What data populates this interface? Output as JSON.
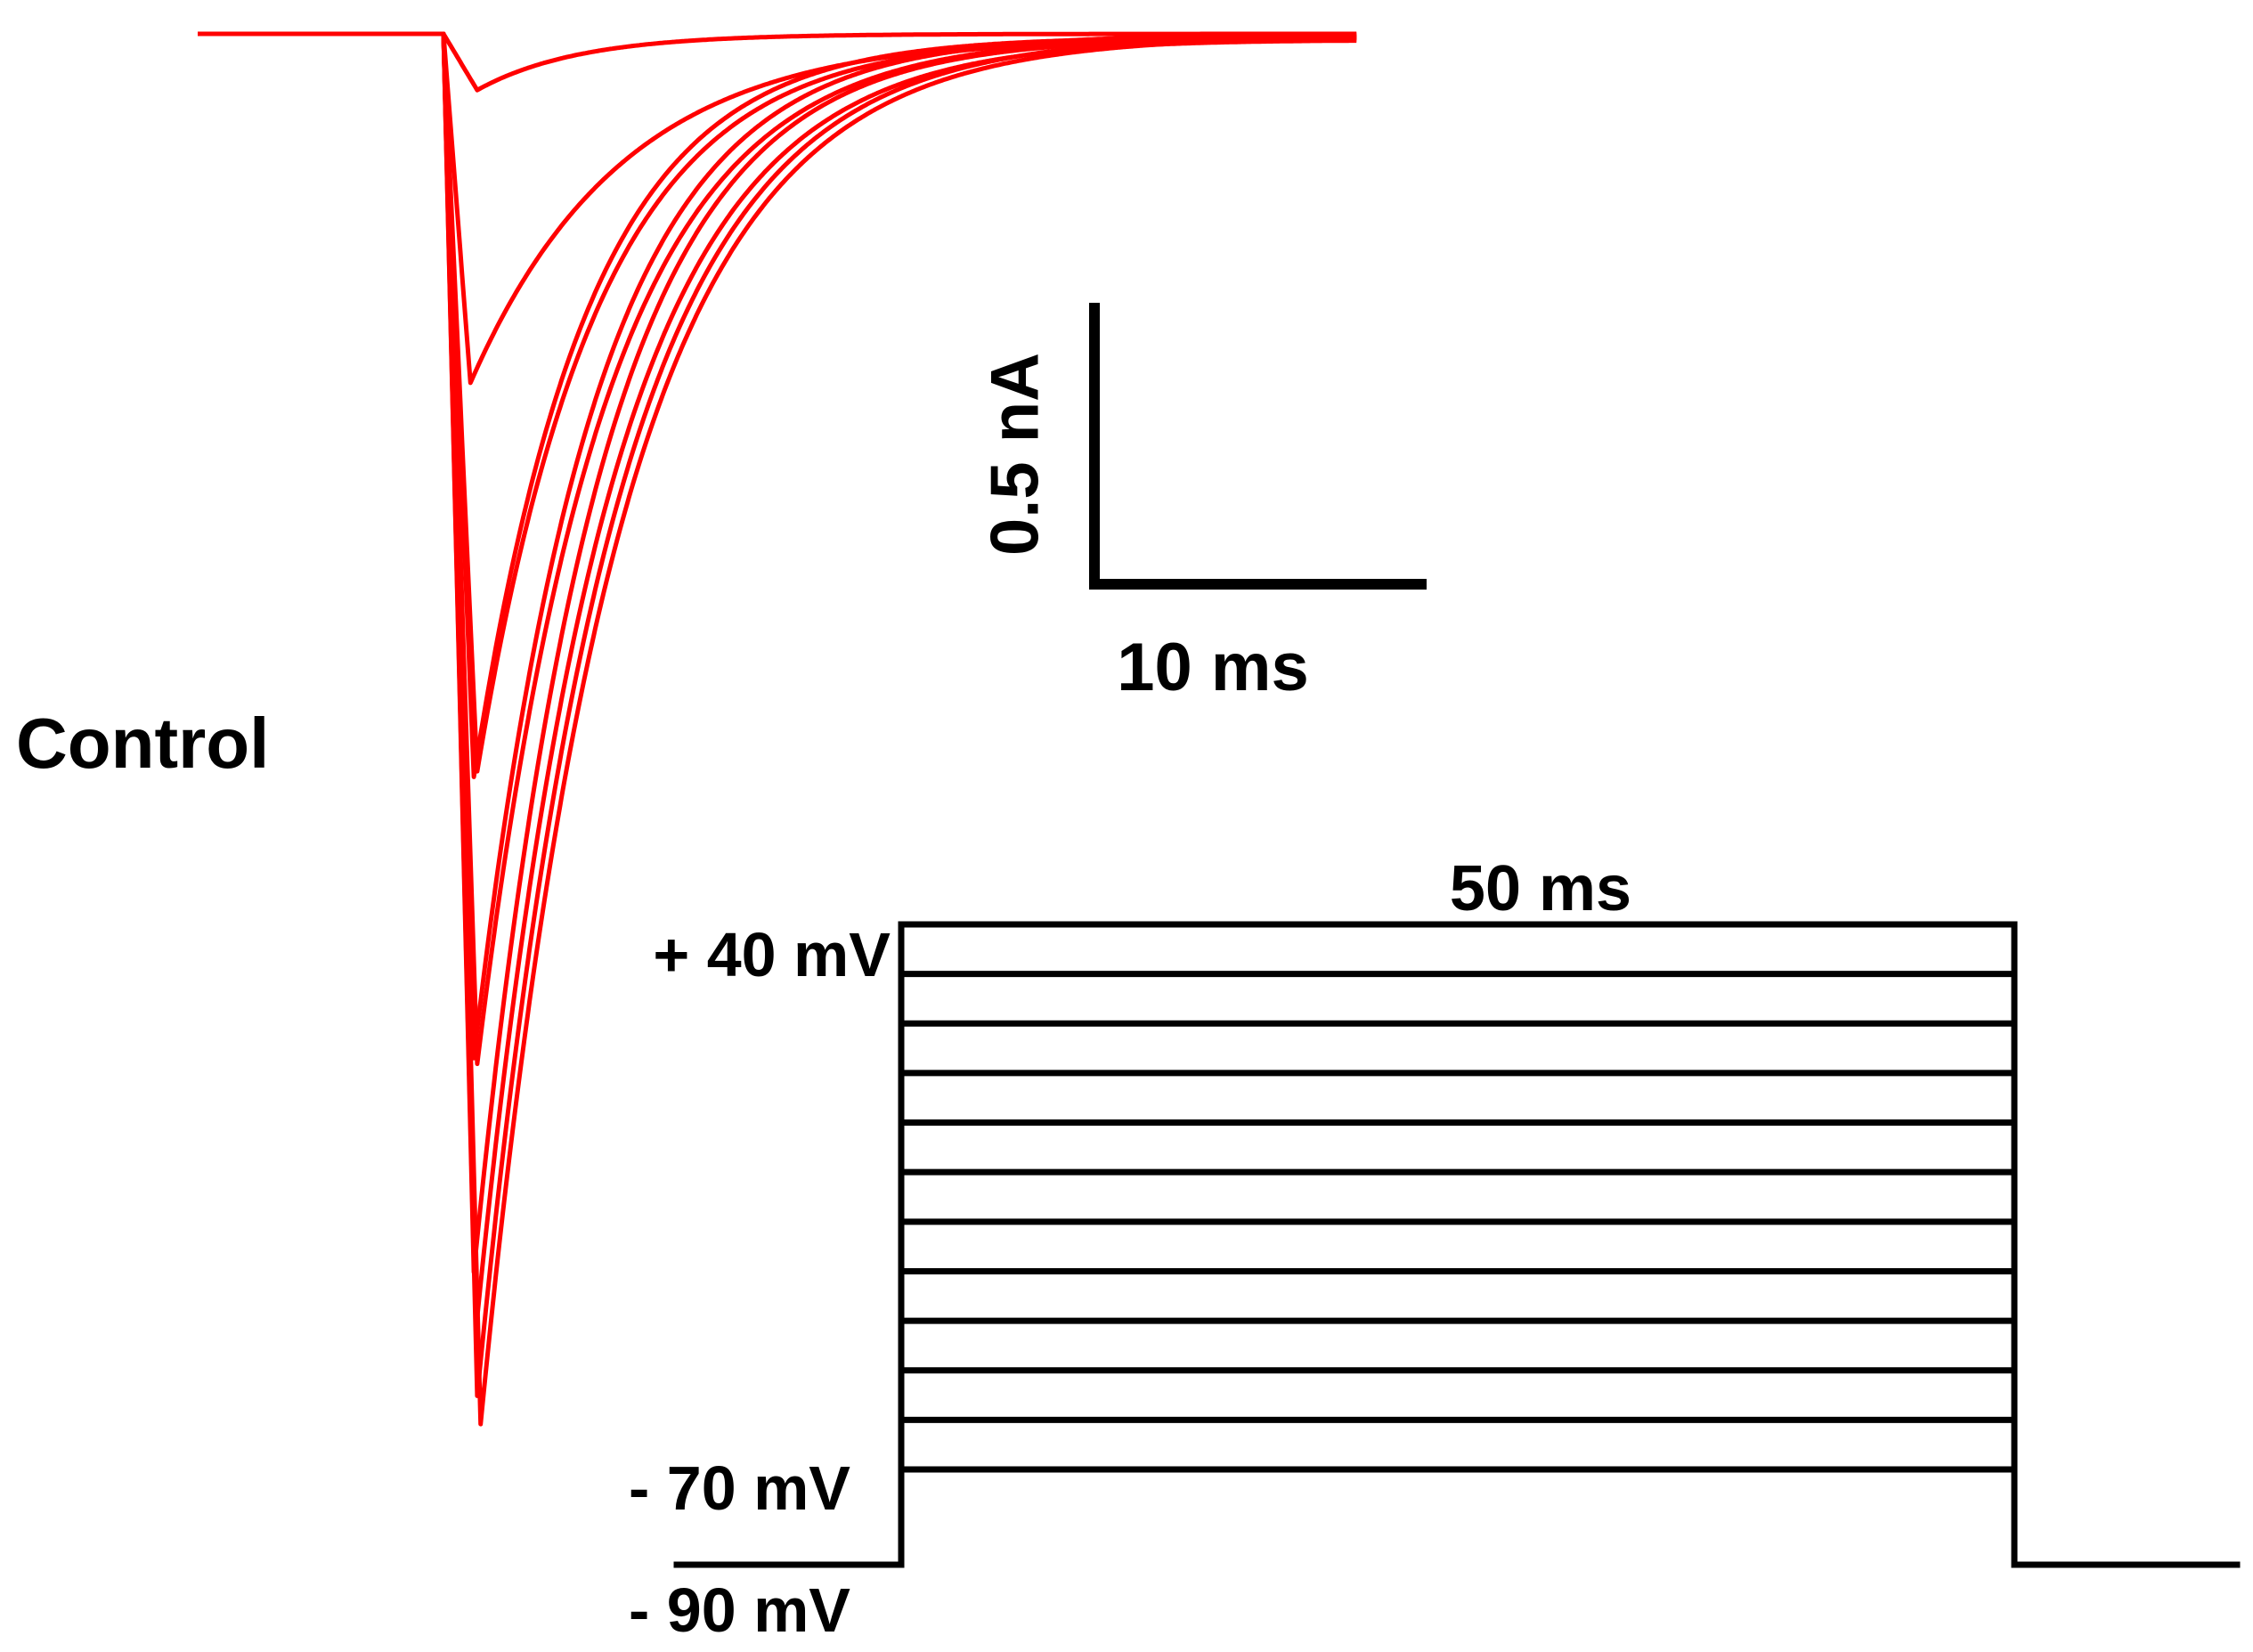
{
  "condition_label": "Control",
  "chart_data": {
    "type": "line",
    "title": "",
    "current_traces": {
      "color": "#ff0000",
      "unit_y": "nA",
      "unit_x": "ms",
      "series": [
        {
          "peak_current_nA": -0.1,
          "peak_time_ms": 1.0,
          "tau_ms": 3.0
        },
        {
          "peak_current_nA": -0.62,
          "peak_time_ms": 0.8,
          "tau_ms": 4.5
        },
        {
          "peak_current_nA": -1.32,
          "peak_time_ms": 0.9,
          "tau_ms": 3.4
        },
        {
          "peak_current_nA": -1.31,
          "peak_time_ms": 1.0,
          "tau_ms": 3.6
        },
        {
          "peak_current_nA": -1.82,
          "peak_time_ms": 0.9,
          "tau_ms": 3.5
        },
        {
          "peak_current_nA": -1.83,
          "peak_time_ms": 1.0,
          "tau_ms": 3.7
        },
        {
          "peak_current_nA": -2.2,
          "peak_time_ms": 0.9,
          "tau_ms": 3.6
        },
        {
          "peak_current_nA": -2.28,
          "peak_time_ms": 1.0,
          "tau_ms": 3.8
        },
        {
          "peak_current_nA": -2.42,
          "peak_time_ms": 1.0,
          "tau_ms": 3.9
        },
        {
          "peak_current_nA": -2.47,
          "peak_time_ms": 1.1,
          "tau_ms": 4.0
        }
      ]
    },
    "scale_bar": {
      "y_value": 0.5,
      "y_label": "0.5 nA",
      "x_value": 10,
      "x_label": "10 ms"
    },
    "voltage_protocol": {
      "color": "#000000",
      "holding_mV": -90,
      "step_start_mV": -70,
      "step_end_mV": 40,
      "step_increment_mV": 10,
      "step_duration_ms": 50,
      "duration_label": "50 ms",
      "labels": {
        "top": "+ 40 mV",
        "bottom_step": "- 70 mV",
        "holding": "- 90 mV"
      }
    }
  }
}
